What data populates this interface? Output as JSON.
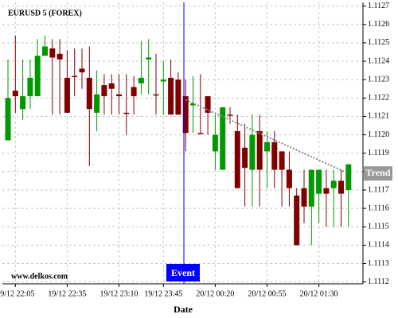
{
  "chart_data": {
    "type": "candlestick",
    "title": "EURUSD 5 (FOREX)",
    "x_label": "Date",
    "watermark": "www.delkos.com",
    "categories": [
      null,
      "19/12 22:05",
      null,
      null,
      null,
      null,
      null,
      null,
      "19/12 22:35",
      null,
      null,
      null,
      null,
      null,
      null,
      "19/12 23:10",
      null,
      null,
      null,
      null,
      null,
      "19/12 23:45",
      null,
      null,
      null,
      null,
      null,
      null,
      "20/12 00:20",
      null,
      null,
      null,
      null,
      null,
      null,
      "20/12 00:55",
      null,
      null,
      null,
      null,
      null,
      null,
      "20/12 01:30",
      null,
      null,
      null,
      null
    ],
    "open": [
      1.11197,
      1.11224,
      1.11214,
      1.11221,
      1.11221,
      1.11243,
      1.11247,
      1.11244,
      1.11231,
      1.11232,
      1.11236,
      1.11231,
      1.11212,
      1.11227,
      1.11228,
      1.11222,
      1.11212,
      1.11226,
      1.11228,
      1.11241,
      1.11222,
      1.11229,
      1.11231,
      1.1123,
      1.11221,
      1.11216,
      1.11201,
      1.11221,
      1.11191,
      1.11181,
      1.11211,
      1.11202,
      1.11193,
      1.11181,
      1.11202,
      1.11191,
      1.11196,
      1.11191,
      1.11181,
      1.11167,
      1.11171,
      1.11161,
      1.11168,
      1.11171,
      1.11171,
      1.11175,
      1.1117
    ],
    "high": [
      1.11241,
      1.11254,
      1.11241,
      1.11241,
      1.11252,
      1.11254,
      1.11252,
      1.11252,
      1.11246,
      1.11247,
      1.11247,
      1.11248,
      1.11235,
      1.11233,
      1.11233,
      1.11233,
      1.11233,
      1.11232,
      1.11251,
      1.11252,
      1.11244,
      1.1124,
      1.11241,
      1.11234,
      1.1123,
      1.11232,
      1.11233,
      1.11221,
      1.11211,
      1.11215,
      1.11215,
      1.11211,
      1.11206,
      1.11211,
      1.11211,
      1.11202,
      1.11202,
      1.11191,
      1.11191,
      1.11171,
      1.11181,
      1.11181,
      1.11181,
      1.11181,
      1.11181,
      1.11181,
      1.11184
    ],
    "low": [
      1.11197,
      1.11212,
      1.11208,
      1.11214,
      1.11221,
      1.11243,
      1.11211,
      1.11211,
      1.11212,
      1.11221,
      1.11225,
      1.11183,
      1.11202,
      1.11211,
      1.11211,
      1.11211,
      1.112,
      1.11211,
      1.11222,
      1.11222,
      1.11211,
      1.11211,
      1.11211,
      1.11211,
      1.11191,
      1.11201,
      1.11201,
      1.112,
      1.11181,
      1.11181,
      1.11206,
      1.11171,
      1.11161,
      1.11161,
      1.11161,
      1.11171,
      1.11171,
      1.11161,
      1.11161,
      1.1114,
      1.11152,
      1.1114,
      1.11152,
      1.1115,
      1.1115,
      1.1115,
      1.1115
    ],
    "close": [
      1.1122,
      1.11221,
      1.11221,
      1.11231,
      1.11243,
      1.11248,
      1.11242,
      1.11241,
      1.11212,
      1.11232,
      1.11234,
      1.11214,
      1.11222,
      1.11221,
      1.11225,
      1.11221,
      1.11212,
      1.11221,
      1.11231,
      1.11242,
      1.11222,
      1.1123,
      1.11211,
      1.11211,
      1.11201,
      1.11217,
      1.11201,
      1.11212,
      1.112,
      1.11215,
      1.11211,
      1.11171,
      1.11182,
      1.112,
      1.11181,
      1.11196,
      1.11181,
      1.11181,
      1.11171,
      1.1114,
      1.11161,
      1.11181,
      1.11181,
      1.11168,
      1.11175,
      1.11168,
      1.11184
    ],
    "up_color": "#009900",
    "down_color": "#800000",
    "ylim": [
      1.11119,
      1.11272
    ],
    "yticks": [
      1.1112,
      1.1113,
      1.1114,
      1.1115,
      1.1116,
      1.1117,
      1.1118,
      1.1119,
      {
        "value": 1.112,
        "label": "1.1120"
      },
      1.1121,
      1.1122,
      1.1123,
      1.1124,
      1.1125,
      1.1126,
      1.1127
    ],
    "grid": true,
    "event": {
      "label": "Event",
      "color": "#0000ff"
    },
    "trend": {
      "label": "Trend",
      "values": [
        1.11219,
        1.11179
      ]
    }
  }
}
